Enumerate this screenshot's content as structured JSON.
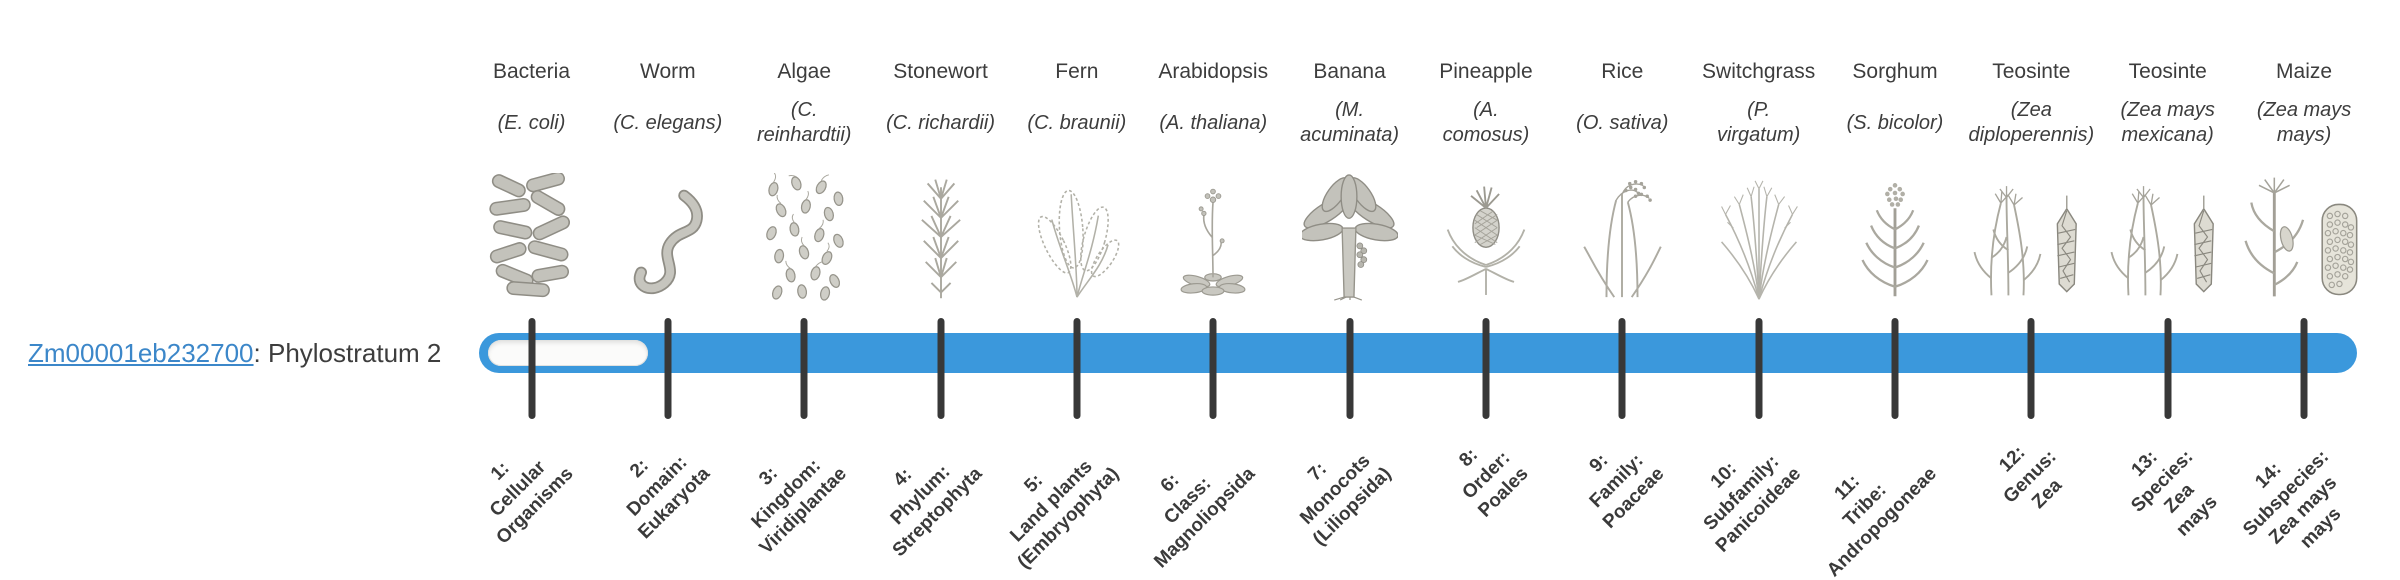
{
  "gene": {
    "id": "Zm00001eb232700",
    "suffix": ": Phylostratum 2",
    "phylostratum": 2
  },
  "colors": {
    "bar_blue": "#3b98dc",
    "tick": "#383838",
    "link_blue": "#3c87c9",
    "text": "#3d3d3d",
    "unfilled_track": "#fbfbfa"
  },
  "timeline": {
    "num_strata": 14,
    "gene_filled_from_stratum": 2
  },
  "taxa": [
    {
      "stratum": 1,
      "common": "Bacteria",
      "species": "(E. coli)",
      "icon": "bacteria-icon",
      "stratum_label": "1:\nCellular\nOrganisms"
    },
    {
      "stratum": 2,
      "common": "Worm",
      "species": "(C. elegans)",
      "icon": "worm-icon",
      "stratum_label": "2:\nDomain:\nEukaryota"
    },
    {
      "stratum": 3,
      "common": "Algae",
      "species": "(C.\nreinhardtii)",
      "icon": "algae-icon",
      "stratum_label": "3:\nKingdom:\nViridiplantae"
    },
    {
      "stratum": 4,
      "common": "Stonewort",
      "species": "(C. richardii)",
      "icon": "stonewort-icon",
      "stratum_label": "4:\nPhylum:\nStreptophyta"
    },
    {
      "stratum": 5,
      "common": "Fern",
      "species": "(C. braunii)",
      "icon": "fern-icon",
      "stratum_label": "5:\nLand plants\n(Embryophyta)"
    },
    {
      "stratum": 6,
      "common": "Arabidopsis",
      "species": "(A. thaliana)",
      "icon": "arabidopsis-icon",
      "stratum_label": "6:\nClass:\nMagnoliopsida"
    },
    {
      "stratum": 7,
      "common": "Banana",
      "species": "(M.\nacuminata)",
      "icon": "banana-icon",
      "stratum_label": "7:\nMonocots\n(Liliopsida)"
    },
    {
      "stratum": 8,
      "common": "Pineapple",
      "species": "(A.\ncomosus)",
      "icon": "pineapple-icon",
      "stratum_label": "8:\nOrder:\nPoales"
    },
    {
      "stratum": 9,
      "common": "Rice",
      "species": "(O. sativa)",
      "icon": "rice-icon",
      "stratum_label": "9:\nFamily:\nPoaceae"
    },
    {
      "stratum": 10,
      "common": "Switchgrass",
      "species": "(P.\nvirgatum)",
      "icon": "switchgrass-icon",
      "stratum_label": "10:\nSubfamily:\nPanicoideae"
    },
    {
      "stratum": 11,
      "common": "Sorghum",
      "species": "(S. bicolor)",
      "icon": "sorghum-icon",
      "stratum_label": "11:\nTribe:\nAndropogoneae"
    },
    {
      "stratum": 12,
      "common": "Teosinte",
      "species": "(Zea\ndiploperennis)",
      "icon": "teosinte-icon",
      "stratum_label": "12:\nGenus:\nZea"
    },
    {
      "stratum": 13,
      "common": "Teosinte",
      "species": "(Zea mays\nmexicana)",
      "icon": "teosinte-icon",
      "stratum_label": "13:\nSpecies:\nZea\nmays"
    },
    {
      "stratum": 14,
      "common": "Maize",
      "species": "(Zea mays\nmays)",
      "icon": "maize-icon",
      "stratum_label": "14:\nSubspecies:\nZea mays\nmays"
    }
  ]
}
